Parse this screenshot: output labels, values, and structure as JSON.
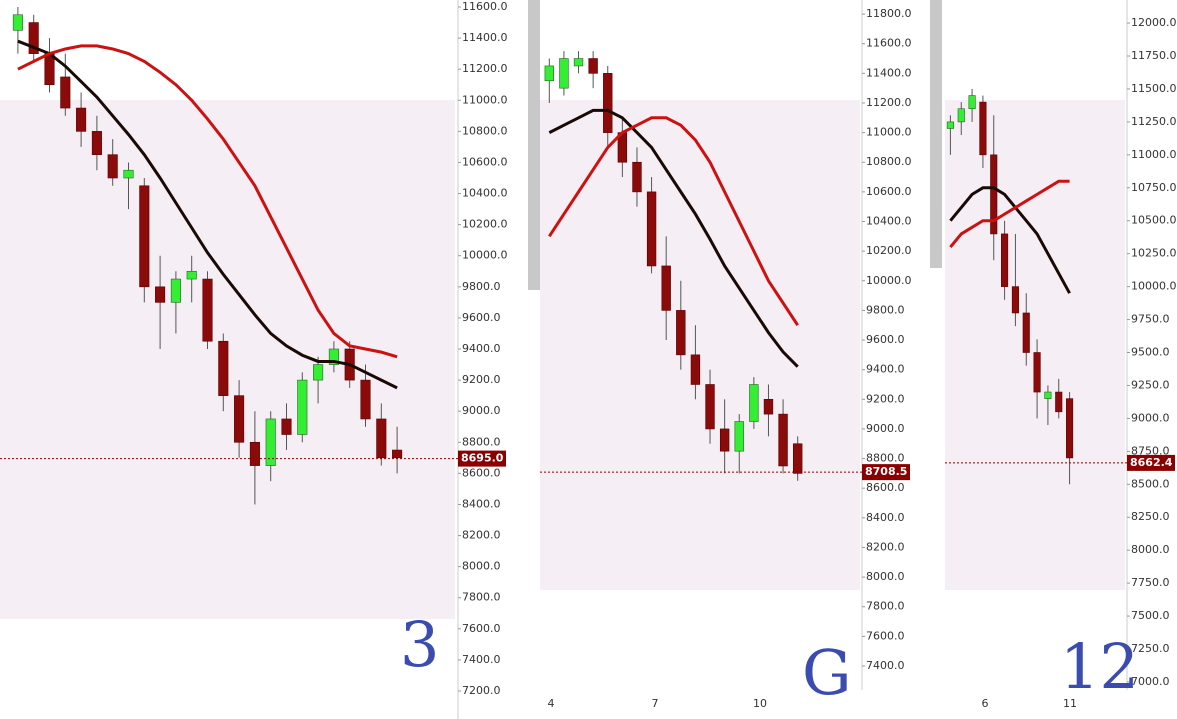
{
  "chart_data": [
    {
      "type": "candlestick",
      "ylim": [
        7020,
        11645
      ],
      "yticks": [
        {
          "value": 7200,
          "label": "7200.0"
        },
        {
          "value": 7400,
          "label": "7400.0"
        },
        {
          "value": 7600,
          "label": "7600.0"
        },
        {
          "value": 7800,
          "label": "7800.0"
        },
        {
          "value": 8000,
          "label": "8000.0"
        },
        {
          "value": 8200,
          "label": "8200.0"
        },
        {
          "value": 8400,
          "label": "8400.0"
        },
        {
          "value": 8600,
          "label": "8600.0"
        },
        {
          "value": 8800,
          "label": "8800.0"
        },
        {
          "value": 9000,
          "label": "9000.0"
        },
        {
          "value": 9200,
          "label": "9200.0"
        },
        {
          "value": 9400,
          "label": "9400.0"
        },
        {
          "value": 9600,
          "label": "9600.0"
        },
        {
          "value": 9800,
          "label": "9800.0"
        },
        {
          "value": 10000,
          "label": "10000.0"
        },
        {
          "value": 10200,
          "label": "10200.0"
        },
        {
          "value": 10400,
          "label": "10400.0"
        },
        {
          "value": 10600,
          "label": "10600.0"
        },
        {
          "value": 10800,
          "label": "10800.0"
        },
        {
          "value": 11000,
          "label": "11000.0"
        },
        {
          "value": 11200,
          "label": "11200.0"
        },
        {
          "value": 11400,
          "label": "11400.0"
        },
        {
          "value": 11600,
          "label": "11600.0"
        }
      ],
      "candles": [
        [
          11450,
          11600,
          11300,
          11550
        ],
        [
          11500,
          11550,
          11250,
          11300
        ],
        [
          11300,
          11400,
          11050,
          11100
        ],
        [
          11150,
          11300,
          10900,
          10950
        ],
        [
          10950,
          11050,
          10700,
          10800
        ],
        [
          10800,
          10900,
          10550,
          10650
        ],
        [
          10650,
          10750,
          10450,
          10500
        ],
        [
          10500,
          10600,
          10300,
          10550
        ],
        [
          10450,
          10500,
          9700,
          9800
        ],
        [
          9800,
          10000,
          9400,
          9700
        ],
        [
          9700,
          9900,
          9500,
          9850
        ],
        [
          9850,
          10000,
          9700,
          9900
        ],
        [
          9850,
          9900,
          9400,
          9450
        ],
        [
          9450,
          9500,
          9000,
          9100
        ],
        [
          9100,
          9200,
          8700,
          8800
        ],
        [
          8800,
          9000,
          8400,
          8650
        ],
        [
          8650,
          9000,
          8550,
          8950
        ],
        [
          8950,
          9050,
          8750,
          8850
        ],
        [
          8850,
          9250,
          8800,
          9200
        ],
        [
          9200,
          9350,
          9050,
          9300
        ],
        [
          9300,
          9450,
          9250,
          9400
        ],
        [
          9400,
          9450,
          9150,
          9200
        ],
        [
          9200,
          9300,
          8900,
          8950
        ],
        [
          8950,
          9050,
          8650,
          8700
        ],
        [
          8750,
          8900,
          8600,
          8700
        ]
      ],
      "series": [
        {
          "color": "#1a0a05",
          "values": [
            11380,
            11340,
            11300,
            11220,
            11120,
            11020,
            10900,
            10780,
            10650,
            10500,
            10340,
            10180,
            10020,
            9880,
            9750,
            9620,
            9500,
            9420,
            9360,
            9320,
            9320,
            9300,
            9250,
            9200,
            9150
          ]
        },
        {
          "color": "#cc1111",
          "values": [
            11200,
            11250,
            11300,
            11330,
            11350,
            11350,
            11330,
            11300,
            11250,
            11180,
            11100,
            11000,
            10880,
            10750,
            10600,
            10450,
            10250,
            10050,
            9850,
            9650,
            9500,
            9420,
            9400,
            9380,
            9350
          ]
        }
      ],
      "last_price": {
        "value": 8695,
        "label": "8695.0"
      },
      "xtick_labels": [],
      "annotation": "3"
    },
    {
      "type": "candlestick",
      "ylim": [
        7238,
        11895
      ],
      "yticks": [
        {
          "value": 7400,
          "label": "7400.0"
        },
        {
          "value": 7600,
          "label": "7600.0"
        },
        {
          "value": 7800,
          "label": "7800.0"
        },
        {
          "value": 8000,
          "label": "8000.0"
        },
        {
          "value": 8200,
          "label": "8200.0"
        },
        {
          "value": 8400,
          "label": "8400.0"
        },
        {
          "value": 8600,
          "label": "8600.0"
        },
        {
          "value": 8800,
          "label": "8800.0"
        },
        {
          "value": 9000,
          "label": "9000.0"
        },
        {
          "value": 9200,
          "label": "9200.0"
        },
        {
          "value": 9400,
          "label": "9400.0"
        },
        {
          "value": 9600,
          "label": "9600.0"
        },
        {
          "value": 9800,
          "label": "9800.0"
        },
        {
          "value": 10000,
          "label": "10000.0"
        },
        {
          "value": 10200,
          "label": "10200.0"
        },
        {
          "value": 10400,
          "label": "10400.0"
        },
        {
          "value": 10600,
          "label": "10600.0"
        },
        {
          "value": 10800,
          "label": "10800.0"
        },
        {
          "value": 11000,
          "label": "11000.0"
        },
        {
          "value": 11200,
          "label": "11200.0"
        },
        {
          "value": 11400,
          "label": "11400.0"
        },
        {
          "value": 11600,
          "label": "11600.0"
        },
        {
          "value": 11800,
          "label": "11800.0"
        }
      ],
      "candles": [
        [
          11350,
          11500,
          11200,
          11450
        ],
        [
          11300,
          11550,
          11250,
          11500
        ],
        [
          11450,
          11550,
          11400,
          11500
        ],
        [
          11500,
          11550,
          11300,
          11400
        ],
        [
          11400,
          11450,
          10900,
          11000
        ],
        [
          11000,
          11100,
          10700,
          10800
        ],
        [
          10800,
          10900,
          10500,
          10600
        ],
        [
          10600,
          10700,
          10050,
          10100
        ],
        [
          10100,
          10300,
          9600,
          9800
        ],
        [
          9800,
          10000,
          9400,
          9500
        ],
        [
          9500,
          9700,
          9200,
          9300
        ],
        [
          9300,
          9400,
          8900,
          9000
        ],
        [
          9000,
          9200,
          8700,
          8850
        ],
        [
          8850,
          9100,
          8700,
          9050
        ],
        [
          9050,
          9350,
          9000,
          9300
        ],
        [
          9200,
          9300,
          8950,
          9100
        ],
        [
          9100,
          9200,
          8700,
          8750
        ],
        [
          8900,
          8950,
          8650,
          8700
        ]
      ],
      "series": [
        {
          "color": "#1a0a05",
          "values": [
            11000,
            11050,
            11100,
            11150,
            11150,
            11100,
            11000,
            10900,
            10750,
            10600,
            10450,
            10280,
            10100,
            9950,
            9800,
            9650,
            9520,
            9420
          ]
        },
        {
          "color": "#cc1111",
          "values": [
            10300,
            10450,
            10600,
            10750,
            10900,
            11000,
            11050,
            11100,
            11100,
            11050,
            10950,
            10800,
            10600,
            10400,
            10200,
            10000,
            9850,
            9700
          ]
        }
      ],
      "last_price": {
        "value": 8708.5,
        "label": "8708.5"
      },
      "xtick_labels": [
        "4",
        "7",
        "10"
      ],
      "annotation": "G"
    },
    {
      "type": "candlestick",
      "ylim": [
        6939,
        12175
      ],
      "yticks": [
        {
          "value": 7000,
          "label": "7000.0"
        },
        {
          "value": 7250,
          "label": "7250.0"
        },
        {
          "value": 7500,
          "label": "7500.0"
        },
        {
          "value": 7750,
          "label": "7750.0"
        },
        {
          "value": 8000,
          "label": "8000.0"
        },
        {
          "value": 8250,
          "label": "8250.0"
        },
        {
          "value": 8500,
          "label": "8500.0"
        },
        {
          "value": 8750,
          "label": "8750.0"
        },
        {
          "value": 9000,
          "label": "9000.0"
        },
        {
          "value": 9250,
          "label": "9250.0"
        },
        {
          "value": 9500,
          "label": "9500.0"
        },
        {
          "value": 9750,
          "label": "9750.0"
        },
        {
          "value": 10000,
          "label": "10000.0"
        },
        {
          "value": 10250,
          "label": "10250.0"
        },
        {
          "value": 10500,
          "label": "10500.0"
        },
        {
          "value": 10750,
          "label": "10750.0"
        },
        {
          "value": 11000,
          "label": "11000.0"
        },
        {
          "value": 11250,
          "label": "11250.0"
        },
        {
          "value": 11500,
          "label": "11500.0"
        },
        {
          "value": 11750,
          "label": "11750.0"
        },
        {
          "value": 12000,
          "label": "12000.0"
        }
      ],
      "candles": [
        [
          11200,
          11300,
          11000,
          11250
        ],
        [
          11250,
          11400,
          11150,
          11350
        ],
        [
          11350,
          11500,
          11250,
          11450
        ],
        [
          11400,
          11450,
          10900,
          11000
        ],
        [
          11000,
          11300,
          10200,
          10400
        ],
        [
          10400,
          10500,
          9900,
          10000
        ],
        [
          10000,
          10400,
          9700,
          9800
        ],
        [
          9800,
          9950,
          9400,
          9500
        ],
        [
          9500,
          9600,
          9000,
          9200
        ],
        [
          9150,
          9250,
          8950,
          9200
        ],
        [
          9200,
          9300,
          9000,
          9050
        ],
        [
          9150,
          9200,
          8500,
          8700
        ]
      ],
      "series": [
        {
          "color": "#1a0a05",
          "values": [
            10500,
            10600,
            10700,
            10750,
            10750,
            10700,
            10600,
            10500,
            10400,
            10250,
            10100,
            9950
          ]
        },
        {
          "color": "#cc1111",
          "values": [
            10300,
            10400,
            10450,
            10500,
            10500,
            10550,
            10600,
            10650,
            10700,
            10750,
            10800,
            10800
          ]
        }
      ],
      "last_price": {
        "value": 8662.4,
        "label": "8662.4"
      },
      "xtick_labels": [
        "6",
        "11"
      ],
      "annotation": "12"
    }
  ]
}
